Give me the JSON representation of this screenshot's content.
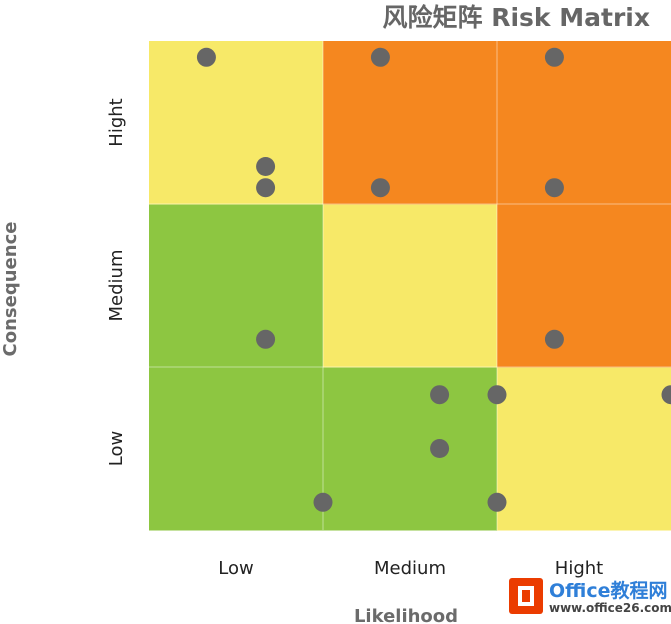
{
  "chart_data": {
    "type": "scatter",
    "title": "风险矩阵 Risk Matrix",
    "xlabel": "Likelihood",
    "ylabel": "Consequence",
    "x_categories": [
      "Low",
      "Medium",
      "Hight"
    ],
    "y_categories": [
      "Low",
      "Medium",
      "Hight"
    ],
    "xlim": [
      0,
      3
    ],
    "ylim": [
      0,
      3
    ],
    "grid": true,
    "cells": [
      {
        "x": 0,
        "y": 0,
        "level": "low"
      },
      {
        "x": 1,
        "y": 0,
        "level": "low"
      },
      {
        "x": 2,
        "y": 0,
        "level": "medium"
      },
      {
        "x": 0,
        "y": 1,
        "level": "low"
      },
      {
        "x": 1,
        "y": 1,
        "level": "medium"
      },
      {
        "x": 2,
        "y": 1,
        "level": "high"
      },
      {
        "x": 0,
        "y": 2,
        "level": "medium"
      },
      {
        "x": 1,
        "y": 2,
        "level": "high"
      },
      {
        "x": 2,
        "y": 2,
        "level": "high"
      }
    ],
    "colors": {
      "low": "#8dc641",
      "medium": "#f7e968",
      "high": "#f5871f",
      "point": "#666666"
    },
    "points": [
      {
        "x": 0.33,
        "y": 2.9
      },
      {
        "x": 1.33,
        "y": 2.9
      },
      {
        "x": 2.33,
        "y": 2.9
      },
      {
        "x": 0.67,
        "y": 2.23
      },
      {
        "x": 0.67,
        "y": 2.1
      },
      {
        "x": 1.33,
        "y": 2.1
      },
      {
        "x": 2.33,
        "y": 2.1
      },
      {
        "x": 0.67,
        "y": 1.17
      },
      {
        "x": 2.33,
        "y": 1.17
      },
      {
        "x": 1.67,
        "y": 0.83
      },
      {
        "x": 2.0,
        "y": 0.83
      },
      {
        "x": 3.0,
        "y": 0.83
      },
      {
        "x": 1.67,
        "y": 0.5
      },
      {
        "x": 1.0,
        "y": 0.17
      },
      {
        "x": 2.0,
        "y": 0.17
      }
    ]
  },
  "watermark": {
    "brand": "Office教程网",
    "url": "www.office26.com"
  }
}
